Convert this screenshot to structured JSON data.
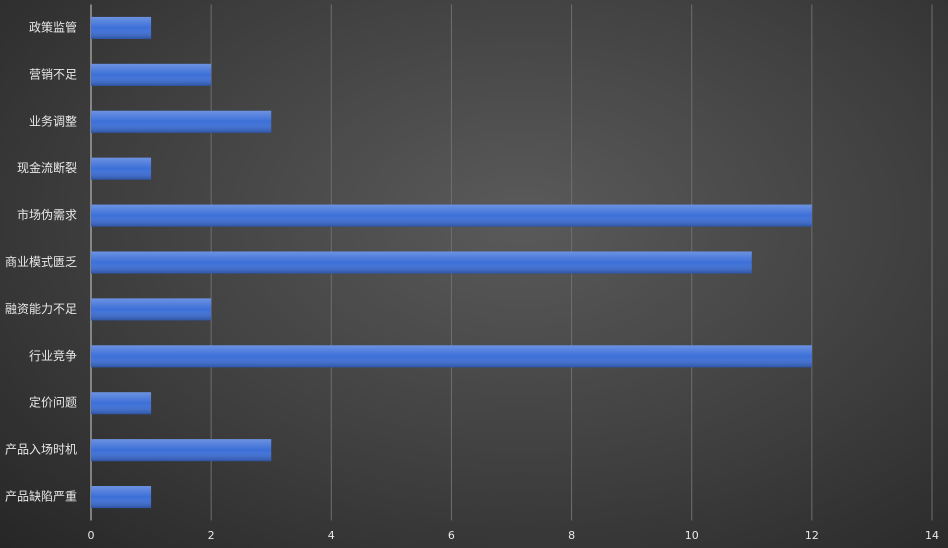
{
  "chart_data": {
    "type": "bar",
    "orientation": "horizontal",
    "categories": [
      "政策监管",
      "营销不足",
      "业务调整",
      "现金流断裂",
      "市场伪需求",
      "商业模式匮乏",
      "融资能力不足",
      "行业竞争",
      "定价问题",
      "产品入场时机",
      "产品缺陷严重"
    ],
    "values": [
      1,
      2,
      3,
      1,
      12,
      11,
      2,
      12,
      1,
      3,
      1
    ],
    "color": "#3c6fd8",
    "xlim": [
      0,
      14
    ],
    "xticks": [
      0,
      2,
      4,
      6,
      8,
      10,
      12,
      14
    ],
    "grid": true
  }
}
